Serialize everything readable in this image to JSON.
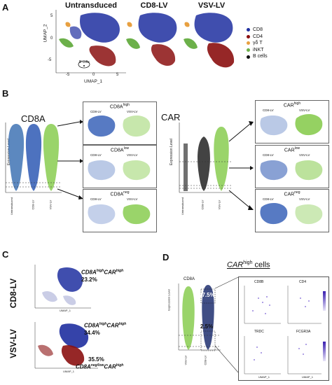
{
  "panels": {
    "a": "A",
    "b": "B",
    "c": "C",
    "d": "D"
  },
  "panelA": {
    "titles": [
      "Untransduced",
      "CD8-LV",
      "VSV-LV"
    ],
    "ylabel": "UMAP_2",
    "xlabel": "UMAP_1",
    "yticks": [
      "5",
      "0",
      "-5"
    ],
    "xticks": [
      "-5",
      "0",
      "5"
    ],
    "bcell_label": "B cells",
    "legend": [
      {
        "label": "CD8",
        "color": "#1f2fa0"
      },
      {
        "label": "CD4",
        "color": "#8b1010"
      },
      {
        "label": "γδ T",
        "color": "#e8a040"
      },
      {
        "label": "iNKT",
        "color": "#6cb04a"
      },
      {
        "label": "B cells",
        "color": "#111111"
      }
    ]
  },
  "panelB": {
    "left_title": "CD8A",
    "right_title": "CAR",
    "ylabel": "Expression Level",
    "xlabels": [
      "Untransduced",
      "CD8-LV",
      "VSV-LV"
    ],
    "left_boxes": [
      {
        "title": "CD8A",
        "sup": "high"
      },
      {
        "title": "CD8A",
        "sup": "low"
      },
      {
        "title": "CD8A",
        "sup": "neg"
      }
    ],
    "right_boxes": [
      {
        "title": "CAR",
        "sup": "high"
      },
      {
        "title": "CAR",
        "sup": "low"
      },
      {
        "title": "CAR",
        "sup": "neg"
      }
    ],
    "box_labels": [
      "CD8-LV",
      "VSV-LV"
    ],
    "colors": {
      "cd8lv": "#3a63b8",
      "vsvlv": "#8fcf5a",
      "untrans": "#4a7bb8"
    }
  },
  "panelC": {
    "rows": [
      "CD8-LV",
      "VSV-LV"
    ],
    "ann1": {
      "prefix": "CD8A",
      "p1": "high",
      "mid": "CAR",
      "p2": "high",
      "pct": "23.2%"
    },
    "ann2": {
      "prefix": "CD8A",
      "p1": "high",
      "mid": "CAR",
      "p2": "high",
      "pct": "34.4%"
    },
    "ann3": {
      "pct": "35.5%",
      "prefix": "CD8A",
      "p1": "neg/low",
      "mid": "CAR",
      "p2": "high"
    },
    "xlabel": "UMAP_1",
    "ylabel": "UMAP_2"
  },
  "panelD": {
    "title_main": "CAR",
    "title_sup": "high",
    "title_rest": " cells",
    "violin_title": "CD8A",
    "pct_high": "97.5%",
    "pct_low": "2.5%",
    "ylabel": "Expression Level",
    "xlabels": [
      "VSV-LV",
      "CD8-LV"
    ],
    "genes": [
      "CD8B",
      "CD4",
      "TRDC",
      "FCGR3A"
    ],
    "xlabel": "UMAP_1",
    "ylabel_umap": "UMAP_2"
  }
}
